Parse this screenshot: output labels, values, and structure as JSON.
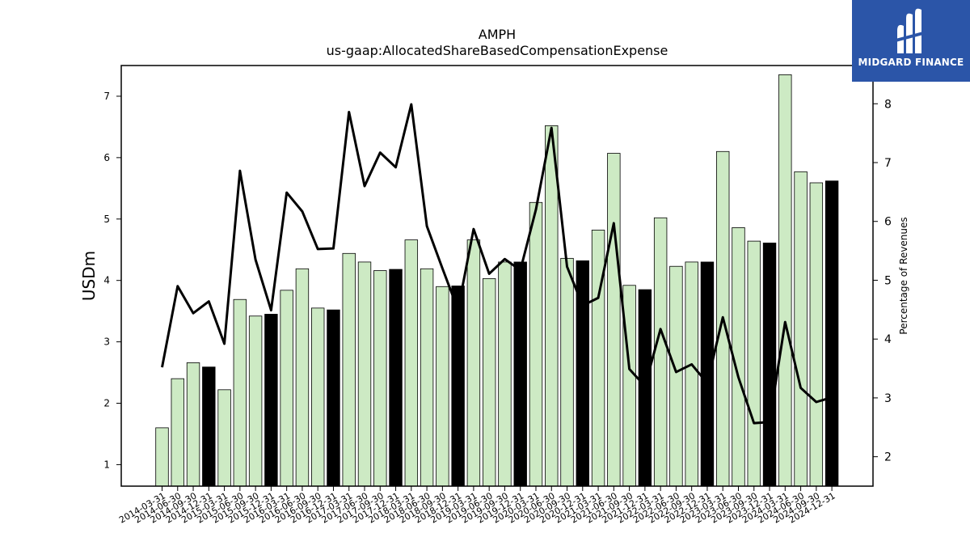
{
  "brand": {
    "name": "MIDGARD FINANCE",
    "icon": "midgard-logo-icon",
    "bg_color": "#2b55a8"
  },
  "chart_data": {
    "type": "bar",
    "title": "AMPH",
    "subtitle": "us-gaap:AllocatedShareBasedCompensationExpense",
    "ylabel": "USDm",
    "y2label": "Percentage of Revenues",
    "ylim": [
      0.65,
      7.5
    ],
    "y2lim": [
      1.5,
      8.65
    ],
    "yticks": [
      1,
      2,
      3,
      4,
      5,
      6,
      7
    ],
    "y2ticks": [
      2,
      3,
      4,
      5,
      6,
      7,
      8
    ],
    "grid": false,
    "colors": {
      "quarter_bar": "#cdeac4",
      "year_end_bar": "#000000",
      "line": "#000000"
    },
    "categories": [
      "2014-03-31",
      "2014-06-30",
      "2014-09-30",
      "2014-12-31",
      "2015-03-31",
      "2015-06-30",
      "2015-09-30",
      "2015-12-31",
      "2016-03-31",
      "2016-06-30",
      "2016-09-30",
      "2016-12-31",
      "2017-03-31",
      "2017-06-30",
      "2017-09-30",
      "2017-12-31",
      "2018-03-31",
      "2018-06-30",
      "2018-09-30",
      "2018-12-31",
      "2019-03-31",
      "2019-06-30",
      "2019-09-30",
      "2019-12-31",
      "2020-03-31",
      "2020-06-30",
      "2020-09-30",
      "2020-12-31",
      "2021-03-31",
      "2021-06-30",
      "2021-09-30",
      "2021-12-31",
      "2022-03-31",
      "2022-06-30",
      "2022-09-30",
      "2022-12-31",
      "2023-03-31",
      "2023-06-30",
      "2023-09-30",
      "2023-12-31",
      "2024-03-31",
      "2024-06-30",
      "2024-09-30",
      "2024-12-31"
    ],
    "series": [
      {
        "kind": "bar",
        "values": [
          1.6,
          2.4,
          2.66,
          2.59,
          2.22,
          3.69,
          3.42,
          3.45,
          3.84,
          4.19,
          3.55,
          3.52,
          4.44,
          4.3,
          4.16,
          4.18,
          4.66,
          4.19,
          3.9,
          3.91,
          4.66,
          4.03,
          4.3,
          4.3,
          5.27,
          6.52,
          4.36,
          4.32,
          4.82,
          6.07,
          3.92,
          3.85,
          5.02,
          4.23,
          4.3,
          4.3,
          6.1,
          4.86,
          4.64,
          4.61,
          7.35,
          5.77,
          5.59,
          5.62
        ],
        "year_end": [
          false,
          false,
          false,
          true,
          false,
          false,
          false,
          true,
          false,
          false,
          false,
          true,
          false,
          false,
          false,
          true,
          false,
          false,
          false,
          true,
          false,
          false,
          false,
          true,
          false,
          false,
          false,
          true,
          false,
          false,
          false,
          true,
          false,
          false,
          false,
          true,
          false,
          false,
          false,
          true,
          false,
          false,
          false,
          true
        ]
      },
      {
        "kind": "line",
        "axis": "right",
        "values": [
          3.52,
          4.9,
          4.44,
          4.64,
          3.92,
          6.86,
          5.35,
          4.49,
          6.49,
          6.17,
          5.53,
          5.54,
          7.86,
          6.6,
          7.17,
          6.92,
          7.99,
          5.92,
          5.2,
          4.5,
          5.87,
          5.11,
          5.36,
          5.17,
          6.2,
          7.59,
          5.23,
          4.57,
          4.7,
          5.97,
          3.49,
          3.2,
          4.17,
          3.44,
          3.57,
          3.25,
          4.37,
          3.35,
          2.57,
          2.59,
          4.29,
          3.17,
          2.93,
          3.01
        ]
      }
    ]
  }
}
